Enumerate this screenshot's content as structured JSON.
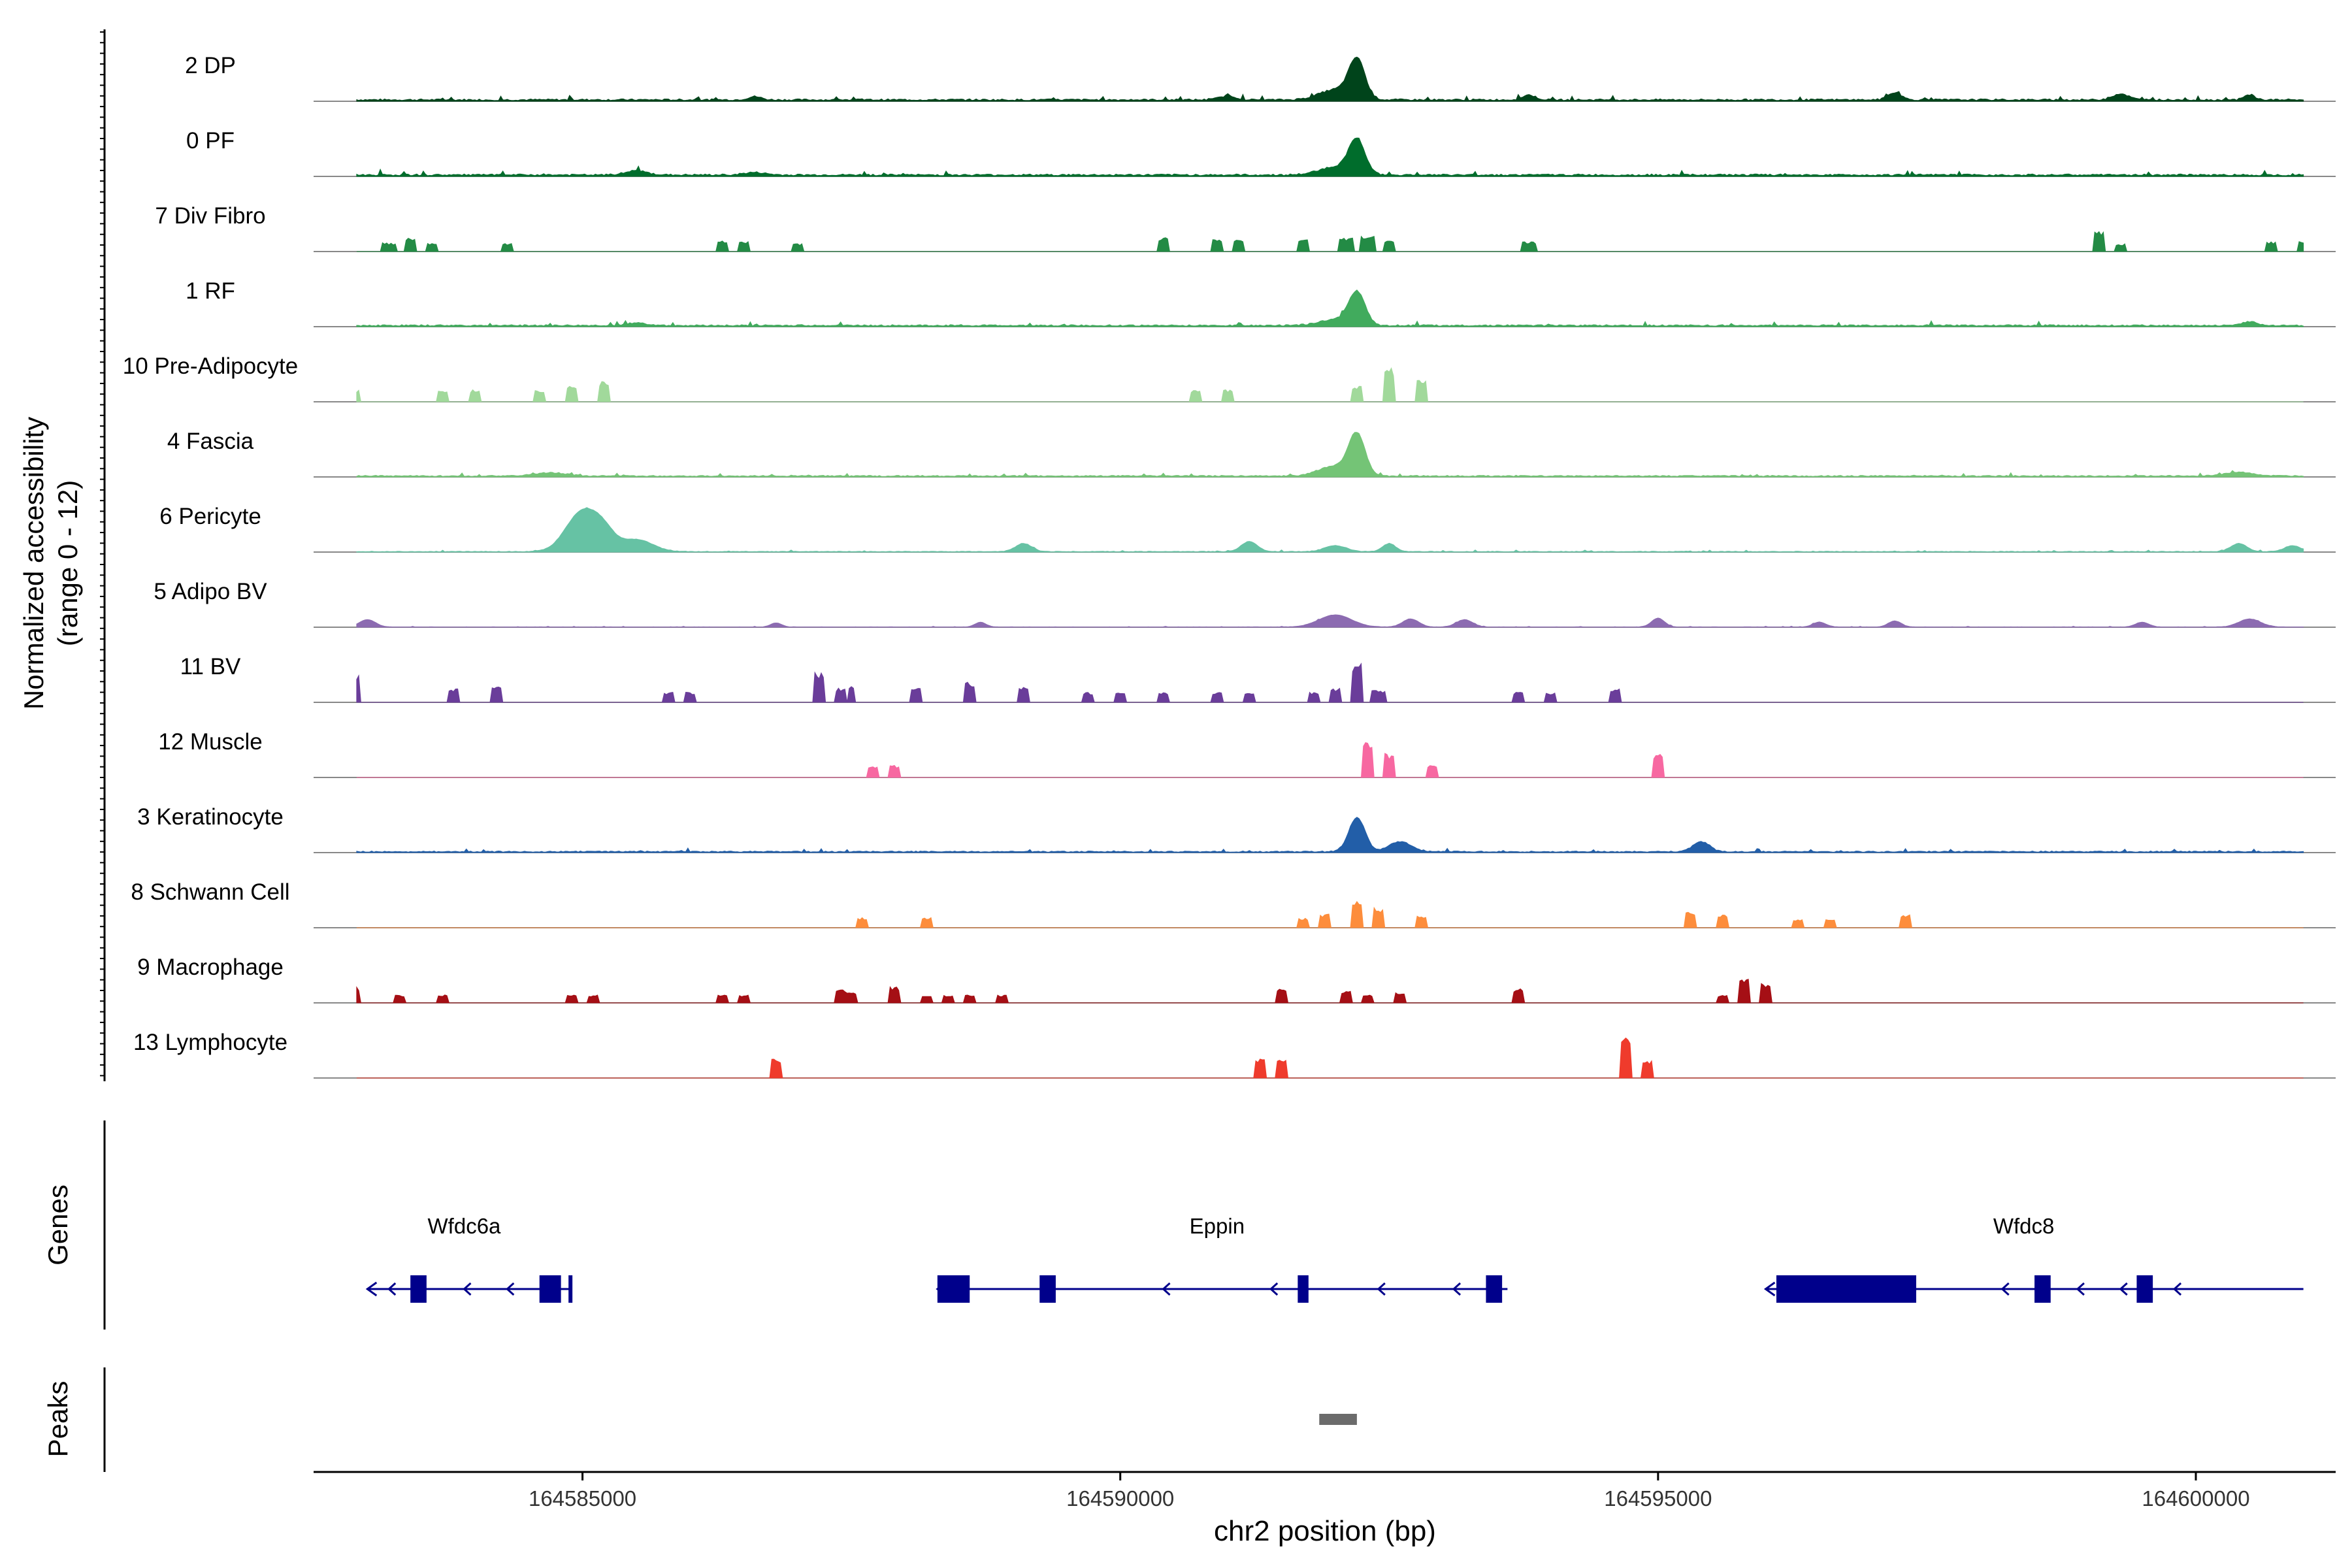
{
  "chart_data": {
    "type": "area",
    "subtype": "genome-coverage-track",
    "xlabel": "chr2 position (bp)",
    "ylabel_line1": "Normalized accessibility",
    "ylabel_line2": "(range 0 - 12)",
    "y_range": [
      0,
      12
    ],
    "x_range": [
      164582500,
      164601300
    ],
    "x_ticks": [
      164585000,
      164590000,
      164595000,
      164600000
    ],
    "x_tick_labels": [
      "164585000",
      "164590000",
      "164595000",
      "164600000"
    ],
    "genes_track_label": "Genes",
    "peaks_track_label": "Peaks",
    "tracks": [
      {
        "name": "2 DP",
        "color": "#00441b",
        "style": "continuous",
        "noise": 0.06,
        "peaks": [
          [
            164592200,
            0.95,
            150
          ],
          [
            164592000,
            0.25,
            300
          ],
          [
            164586600,
            0.08,
            120
          ],
          [
            164591000,
            0.1,
            150
          ],
          [
            164593800,
            0.12,
            120
          ],
          [
            164597200,
            0.18,
            120
          ],
          [
            164599300,
            0.15,
            150
          ],
          [
            164600500,
            0.12,
            100
          ]
        ]
      },
      {
        "name": "0 PF",
        "color": "#006d2c",
        "style": "continuous",
        "noise": 0.06,
        "peaks": [
          [
            164592200,
            0.85,
            150
          ],
          [
            164592000,
            0.2,
            300
          ],
          [
            164585500,
            0.1,
            200
          ],
          [
            164586600,
            0.06,
            200
          ]
        ]
      },
      {
        "name": "7 Div Fibro",
        "color": "#238b45",
        "style": "sparse",
        "peaks": [
          [
            164583200,
            0.22,
            120
          ],
          [
            164583400,
            0.35,
            80
          ],
          [
            164583600,
            0.22,
            100
          ],
          [
            164584300,
            0.2,
            100
          ],
          [
            164586300,
            0.28,
            100
          ],
          [
            164586500,
            0.25,
            100
          ],
          [
            164587000,
            0.2,
            100
          ],
          [
            164590400,
            0.35,
            100
          ],
          [
            164590900,
            0.3,
            100
          ],
          [
            164591100,
            0.3,
            100
          ],
          [
            164591700,
            0.3,
            100
          ],
          [
            164592100,
            0.35,
            120
          ],
          [
            164592300,
            0.4,
            120
          ],
          [
            164592500,
            0.3,
            100
          ],
          [
            164593800,
            0.25,
            120
          ],
          [
            164599100,
            0.5,
            100
          ],
          [
            164599300,
            0.2,
            80
          ],
          [
            164600700,
            0.25,
            100
          ],
          [
            164601000,
            0.25,
            100
          ]
        ]
      },
      {
        "name": "1 RF",
        "color": "#41ab5d",
        "style": "continuous",
        "noise": 0.05,
        "peaks": [
          [
            164592200,
            0.8,
            150
          ],
          [
            164592000,
            0.15,
            300
          ],
          [
            164585500,
            0.06,
            200
          ],
          [
            164600500,
            0.1,
            120
          ]
        ]
      },
      {
        "name": "10 Pre-Adipocyte",
        "color": "#a1d99b",
        "style": "sparse",
        "peaks": [
          [
            164582900,
            0.3,
            60
          ],
          [
            164583700,
            0.3,
            80
          ],
          [
            164584000,
            0.3,
            80
          ],
          [
            164584600,
            0.3,
            80
          ],
          [
            164584900,
            0.4,
            80
          ],
          [
            164585200,
            0.5,
            100
          ],
          [
            164590700,
            0.3,
            80
          ],
          [
            164591000,
            0.3,
            80
          ],
          [
            164592200,
            0.4,
            80
          ],
          [
            164592500,
            0.85,
            80
          ],
          [
            164592800,
            0.55,
            80
          ]
        ]
      },
      {
        "name": "4 Fascia",
        "color": "#74c476",
        "style": "continuous",
        "noise": 0.04,
        "peaks": [
          [
            164592200,
            1.0,
            150
          ],
          [
            164592000,
            0.25,
            300
          ],
          [
            164584700,
            0.08,
            300
          ],
          [
            164600400,
            0.1,
            250
          ]
        ]
      },
      {
        "name": "6 Pericyte",
        "color": "#66c2a4",
        "style": "continuous",
        "noise": 0.02,
        "peaks": [
          [
            164585000,
            1.0,
            300
          ],
          [
            164585500,
            0.3,
            300
          ],
          [
            164585200,
            0.35,
            200
          ],
          [
            164589100,
            0.2,
            150
          ],
          [
            164591200,
            0.25,
            150
          ],
          [
            164592000,
            0.15,
            200
          ],
          [
            164592500,
            0.2,
            120
          ],
          [
            164600400,
            0.2,
            150
          ],
          [
            164600900,
            0.15,
            150
          ]
        ]
      },
      {
        "name": "5 Adipo BV",
        "color": "#8c6bb1",
        "style": "continuous",
        "noise": 0.01,
        "peaks": [
          [
            164583000,
            0.18,
            150
          ],
          [
            164586800,
            0.1,
            100
          ],
          [
            164588700,
            0.12,
            100
          ],
          [
            164592000,
            0.3,
            300
          ],
          [
            164592700,
            0.2,
            150
          ],
          [
            164593200,
            0.18,
            150
          ],
          [
            164595000,
            0.22,
            120
          ],
          [
            164596500,
            0.12,
            120
          ],
          [
            164597200,
            0.15,
            120
          ],
          [
            164599500,
            0.12,
            120
          ],
          [
            164600500,
            0.2,
            200
          ]
        ]
      },
      {
        "name": "11 BV",
        "color": "#6a3d9a",
        "style": "sparse",
        "peaks": [
          [
            164582900,
            0.7,
            60
          ],
          [
            164583800,
            0.35,
            80
          ],
          [
            164584200,
            0.4,
            80
          ],
          [
            164585800,
            0.25,
            80
          ],
          [
            164586000,
            0.25,
            80
          ],
          [
            164587200,
            0.75,
            80
          ],
          [
            164587400,
            0.35,
            80
          ],
          [
            164587500,
            0.4,
            60
          ],
          [
            164588100,
            0.35,
            80
          ],
          [
            164588600,
            0.5,
            80
          ],
          [
            164589100,
            0.4,
            80
          ],
          [
            164589700,
            0.25,
            80
          ],
          [
            164590000,
            0.25,
            80
          ],
          [
            164590400,
            0.25,
            80
          ],
          [
            164590900,
            0.25,
            80
          ],
          [
            164591200,
            0.25,
            80
          ],
          [
            164591800,
            0.25,
            80
          ],
          [
            164592000,
            0.35,
            100
          ],
          [
            164592200,
            1.0,
            80
          ],
          [
            164592400,
            0.3,
            120
          ],
          [
            164593700,
            0.25,
            100
          ],
          [
            164594000,
            0.25,
            100
          ],
          [
            164594600,
            0.35,
            100
          ]
        ]
      },
      {
        "name": "12 Muscle",
        "color": "#f768a1",
        "style": "sparse",
        "peaks": [
          [
            164587700,
            0.3,
            80
          ],
          [
            164587900,
            0.3,
            80
          ],
          [
            164592300,
            0.9,
            80
          ],
          [
            164592500,
            0.6,
            100
          ],
          [
            164592900,
            0.3,
            80
          ],
          [
            164595000,
            0.6,
            100
          ]
        ]
      },
      {
        "name": "3 Keratinocyte",
        "color": "#225ea8",
        "style": "continuous",
        "noise": 0.04,
        "peaks": [
          [
            164592200,
            0.85,
            150
          ],
          [
            164592600,
            0.25,
            200
          ],
          [
            164595400,
            0.25,
            150
          ]
        ]
      },
      {
        "name": "8 Schwann Cell",
        "color": "#fd8d3c",
        "style": "sparse",
        "peaks": [
          [
            164587600,
            0.25,
            80
          ],
          [
            164588200,
            0.25,
            80
          ],
          [
            164591700,
            0.25,
            80
          ],
          [
            164591900,
            0.35,
            80
          ],
          [
            164592200,
            0.7,
            80
          ],
          [
            164592400,
            0.5,
            100
          ],
          [
            164592800,
            0.3,
            100
          ],
          [
            164595300,
            0.4,
            100
          ],
          [
            164595600,
            0.35,
            100
          ],
          [
            164596300,
            0.2,
            80
          ],
          [
            164596600,
            0.2,
            80
          ],
          [
            164597300,
            0.35,
            100
          ]
        ]
      },
      {
        "name": "9 Macrophage",
        "color": "#a50f15",
        "style": "sparse",
        "peaks": [
          [
            164582900,
            0.4,
            60
          ],
          [
            164583300,
            0.2,
            80
          ],
          [
            164583700,
            0.2,
            80
          ],
          [
            164584900,
            0.2,
            80
          ],
          [
            164585100,
            0.2,
            80
          ],
          [
            164586300,
            0.2,
            80
          ],
          [
            164586500,
            0.2,
            80
          ],
          [
            164587400,
            0.35,
            80
          ],
          [
            164587500,
            0.25,
            80
          ],
          [
            164587900,
            0.4,
            80
          ],
          [
            164588200,
            0.2,
            80
          ],
          [
            164588400,
            0.2,
            80
          ],
          [
            164588600,
            0.2,
            80
          ],
          [
            164588900,
            0.2,
            80
          ],
          [
            164591500,
            0.35,
            80
          ],
          [
            164592100,
            0.3,
            80
          ],
          [
            164592300,
            0.2,
            80
          ],
          [
            164592600,
            0.25,
            80
          ],
          [
            164593700,
            0.35,
            100
          ],
          [
            164595600,
            0.2,
            80
          ],
          [
            164595800,
            0.6,
            80
          ],
          [
            164596000,
            0.5,
            80
          ]
        ]
      },
      {
        "name": "13 Lymphocyte",
        "color": "#ef3b2c",
        "style": "sparse",
        "peaks": [
          [
            164586800,
            0.5,
            100
          ],
          [
            164591300,
            0.5,
            80
          ],
          [
            164591500,
            0.5,
            80
          ],
          [
            164594700,
            1.0,
            80
          ],
          [
            164594900,
            0.45,
            100
          ]
        ]
      }
    ],
    "genes": [
      {
        "name": "Wfdc6a",
        "start": 164583000,
        "end": 164584900,
        "strand": "-",
        "label_x": 164583900,
        "exons": [
          [
            164583400,
            164583550
          ],
          [
            164584600,
            164584800
          ],
          [
            164584870,
            164584900
          ]
        ],
        "arrows": [
          164583200,
          164583900,
          164584300
        ]
      },
      {
        "name": "Eppin",
        "start": 164588300,
        "end": 164593600,
        "strand": "-",
        "label_x": 164590900,
        "exons": [
          [
            164588300,
            164588600
          ],
          [
            164589250,
            164589400
          ],
          [
            164591650,
            164591750
          ],
          [
            164593400,
            164593550
          ]
        ],
        "arrows": [
          164590400,
          164591400,
          164592400,
          164593100
        ]
      },
      {
        "name": "Wfdc8",
        "start": 164596000,
        "end": 164601000,
        "strand": "-",
        "label_x": 164598400,
        "exons": [
          [
            164596100,
            164597400
          ],
          [
            164598500,
            164598650
          ],
          [
            164599450,
            164599600
          ]
        ],
        "arrows": [
          164598200,
          164598900,
          164599300,
          164599800
        ]
      }
    ],
    "peak_regions": [
      [
        164591850,
        164592200
      ]
    ]
  }
}
